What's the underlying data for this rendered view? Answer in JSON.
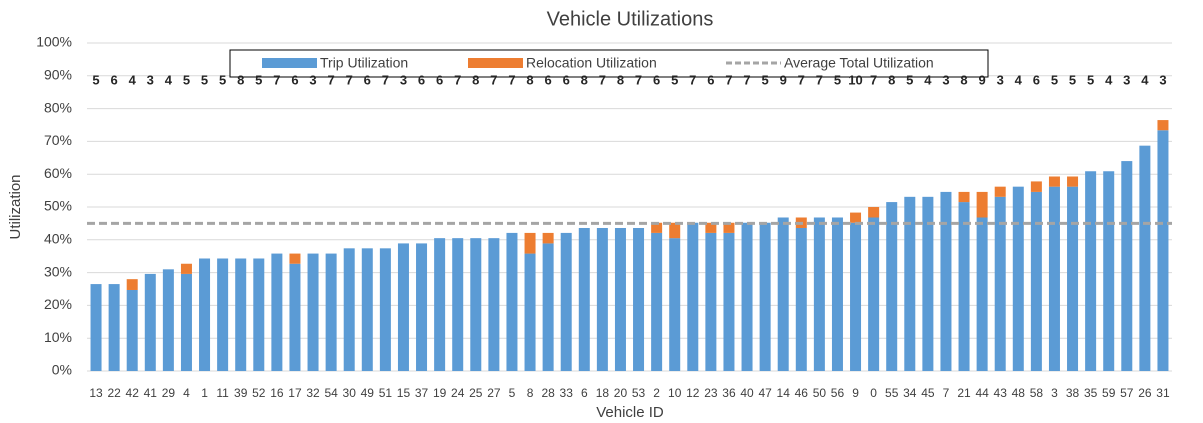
{
  "chart_data": {
    "type": "stacked_bar",
    "title": "Vehicle Utilizations",
    "x_label": "Vehicle ID",
    "y_label": "Utilization",
    "categories": [
      "13",
      "22",
      "42",
      "41",
      "29",
      "4",
      "1",
      "11",
      "39",
      "52",
      "16",
      "17",
      "32",
      "54",
      "30",
      "49",
      "51",
      "15",
      "37",
      "19",
      "24",
      "25",
      "27",
      "5",
      "8",
      "28",
      "33",
      "6",
      "18",
      "20",
      "53",
      "2",
      "10",
      "12",
      "23",
      "36",
      "40",
      "47",
      "14",
      "46",
      "50",
      "56",
      "9",
      "0",
      "55",
      "34",
      "45",
      "7",
      "21",
      "44",
      "43",
      "48",
      "58",
      "3",
      "38",
      "35",
      "59",
      "57",
      "26",
      "31"
    ],
    "series": [
      {
        "name": "Trip Utilization",
        "color": "#5b9bd5",
        "values": [
          26.5,
          26.5,
          24.7,
          29.6,
          31,
          29.6,
          34.3,
          34.3,
          34.3,
          34.3,
          35.8,
          32.7,
          35.8,
          35.8,
          37.4,
          37.4,
          37.4,
          38.9,
          38.9,
          40.5,
          40.5,
          40.5,
          40.5,
          42.1,
          35.8,
          38.9,
          42.1,
          43.6,
          43.6,
          43.6,
          43.6,
          42.1,
          40.5,
          45.2,
          42.1,
          42.1,
          45.2,
          45.2,
          46.8,
          43.6,
          46.8,
          46.8,
          45.2,
          46.8,
          51.5,
          53.1,
          53.1,
          54.6,
          51.5,
          46.8,
          53.1,
          56.2,
          54.6,
          56.2,
          56.2,
          60.9,
          60.9,
          64,
          68.7,
          73.4
        ]
      },
      {
        "name": "Relocation Utilization",
        "color": "#ed7d31",
        "values": [
          0,
          0,
          3.3,
          0,
          0,
          3.1,
          0,
          0,
          0,
          0,
          0,
          3.1,
          0,
          0,
          0,
          0,
          0,
          0,
          0,
          0,
          0,
          0,
          0,
          0,
          6.3,
          3.2,
          0,
          0,
          0,
          0,
          0,
          3.1,
          4.7,
          0,
          3.1,
          3.1,
          0,
          0,
          0,
          3.2,
          0,
          0,
          3.1,
          3.2,
          0,
          0,
          0,
          0,
          3.1,
          7.8,
          3.1,
          0,
          3.2,
          3.1,
          3.1,
          0,
          0,
          0,
          0,
          3.1
        ]
      }
    ],
    "reference_line": {
      "name": "Average Total Utilization",
      "color": "#a5a5a5",
      "value": 45
    },
    "bar_labels": [
      5,
      6,
      4,
      3,
      4,
      5,
      5,
      5,
      8,
      5,
      7,
      6,
      3,
      7,
      7,
      6,
      7,
      3,
      6,
      6,
      7,
      8,
      7,
      7,
      8,
      6,
      6,
      8,
      7,
      8,
      7,
      6,
      5,
      7,
      6,
      7,
      7,
      5,
      9,
      7,
      7,
      5,
      10,
      7,
      8,
      5,
      4,
      3,
      8,
      9,
      3,
      4,
      6,
      5,
      5,
      5,
      4,
      3,
      4,
      3
    ],
    "ylim": [
      0,
      100
    ],
    "yticks": [
      {
        "value": 0,
        "label": "0%"
      },
      {
        "value": 10,
        "label": "10%"
      },
      {
        "value": 20,
        "label": "20%"
      },
      {
        "value": 30,
        "label": "30%"
      },
      {
        "value": 40,
        "label": "40%"
      },
      {
        "value": 50,
        "label": "50%"
      },
      {
        "value": 60,
        "label": "60%"
      },
      {
        "value": 70,
        "label": "70%"
      },
      {
        "value": 80,
        "label": "80%"
      },
      {
        "value": 90,
        "label": "90%"
      },
      {
        "value": 100,
        "label": "100%"
      }
    ],
    "grid": true,
    "legend": "top"
  }
}
